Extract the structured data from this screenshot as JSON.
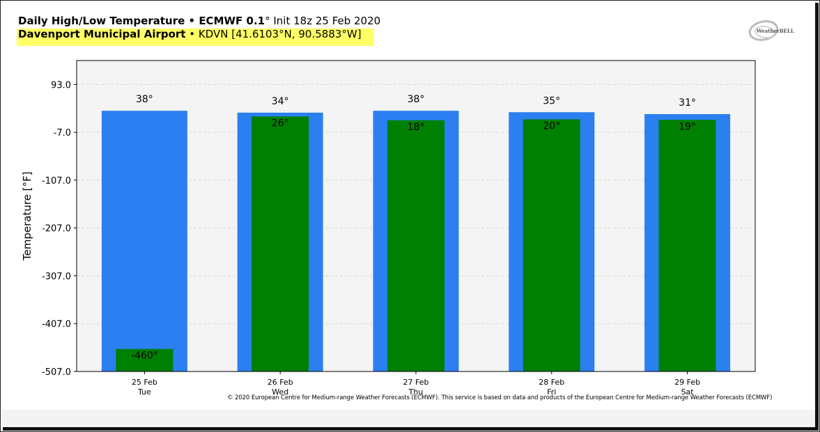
{
  "header": {
    "title_bold": "Daily High/Low Temperature • ECMWF 0.1",
    "title_rest": "° Init 18z 25 Feb 2020",
    "station_bold": "Davenport Municipal Airport",
    "station_rest": " • KDVN [41.6103°N, 90.5883°W]"
  },
  "logo": {
    "text": "WeatherBELL"
  },
  "copyright": "© 2020 European Centre for Medium-range Weather Forecasts (ECMWF). This service is based on data and products of the European Centre for Medium-range Weather Forecasts (ECMWF)",
  "colors": {
    "high": "#2b7ff0",
    "low": "#008000",
    "plot_bg": "#f4f4f4",
    "highlight": "#ffff66"
  },
  "chart_data": {
    "type": "bar",
    "ylabel": "Temperature [°F]",
    "ylim": [
      -507,
      143
    ],
    "yticks": [
      93.0,
      -7.0,
      -107.0,
      -207.0,
      -307.0,
      -407.0,
      -507.0
    ],
    "ytick_labels": [
      "93.0",
      "-7.0",
      "-107.0",
      "-207.0",
      "-307.0",
      "-407.0",
      "-507.0"
    ],
    "grid": true,
    "categories": [
      {
        "date": "25 Feb",
        "day": "Tue"
      },
      {
        "date": "26 Feb",
        "day": "Wed"
      },
      {
        "date": "27 Feb",
        "day": "Thu"
      },
      {
        "date": "28 Feb",
        "day": "Fri"
      },
      {
        "date": "29 Feb",
        "day": "Sat"
      }
    ],
    "series": [
      {
        "values": [
          38,
          34,
          38,
          35,
          31
        ],
        "labels": [
          "38°",
          "34°",
          "38°",
          "35°",
          "31°"
        ]
      },
      {
        "values": [
          -460,
          26,
          18,
          20,
          19
        ],
        "labels": [
          "-460°",
          "26°",
          "18°",
          "20°",
          "19°"
        ]
      }
    ]
  }
}
